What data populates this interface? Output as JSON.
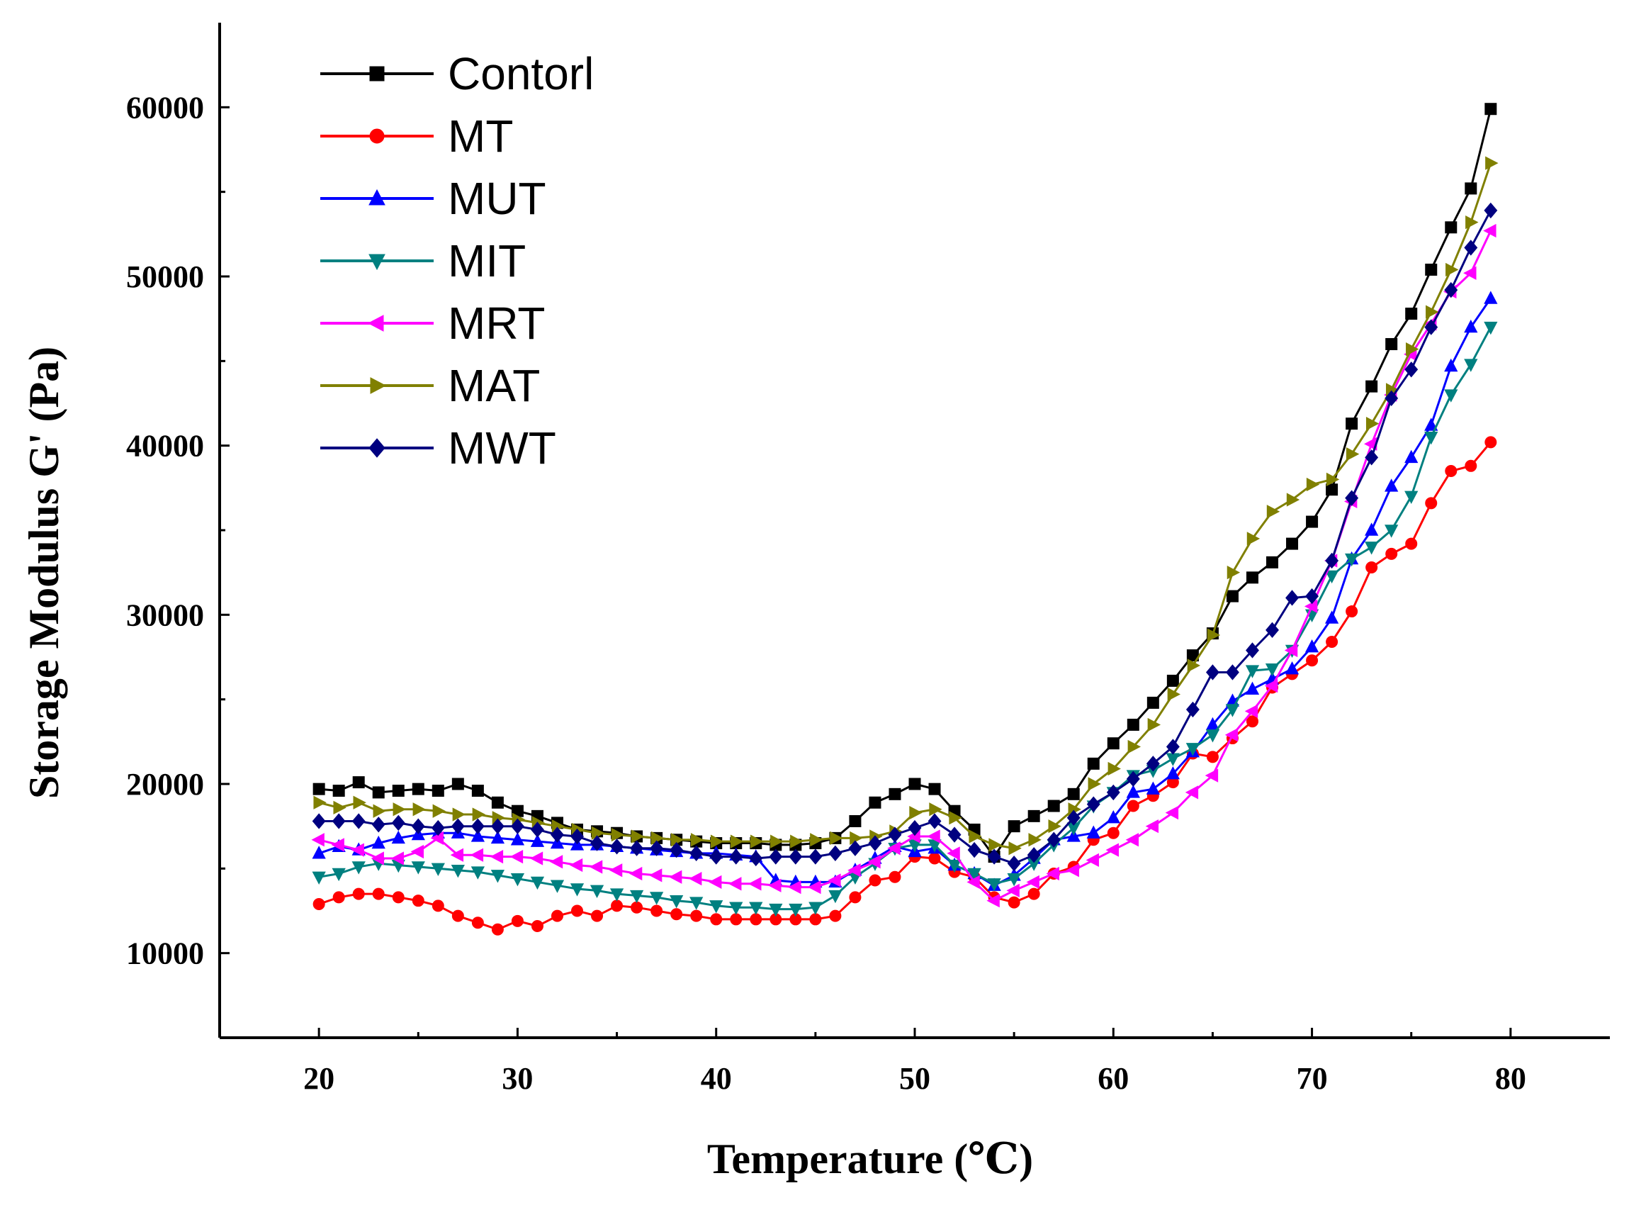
{
  "chart_data": {
    "type": "line",
    "title": "",
    "xlabel": "Temperature (℃)",
    "ylabel": "Storage Modulus G' (Pa)",
    "xlim": [
      15,
      85
    ],
    "ylim": [
      5000,
      65000
    ],
    "xticks": [
      20,
      30,
      40,
      50,
      60,
      70,
      80
    ],
    "yticks": [
      10000,
      20000,
      30000,
      40000,
      50000,
      60000
    ],
    "ytick_labels": [
      "10000",
      "20000",
      "30000",
      "40000",
      "50000",
      "60000"
    ],
    "legend_position": "top-left",
    "x": [
      20,
      21,
      22,
      23,
      24,
      25,
      26,
      27,
      28,
      29,
      30,
      31,
      32,
      33,
      34,
      35,
      36,
      37,
      38,
      39,
      40,
      41,
      42,
      43,
      44,
      45,
      46,
      47,
      48,
      49,
      50,
      51,
      52,
      53,
      54,
      55,
      56,
      57,
      58,
      59,
      60,
      61,
      62,
      63,
      64,
      65,
      66,
      67,
      68,
      69,
      70,
      71,
      72,
      73,
      74,
      75,
      76,
      77,
      78,
      79
    ],
    "series": [
      {
        "name": "Contorl",
        "color": "#000000",
        "marker": "square",
        "values": [
          19700,
          19600,
          20100,
          19500,
          19600,
          19700,
          19600,
          20000,
          19600,
          18900,
          18400,
          18100,
          17700,
          17300,
          17200,
          17100,
          16900,
          16800,
          16700,
          16600,
          16500,
          16500,
          16500,
          16400,
          16400,
          16500,
          16800,
          17800,
          18900,
          19400,
          20000,
          19700,
          18400,
          17300,
          15700,
          17500,
          18100,
          18700,
          19400,
          21200,
          22400,
          23500,
          24800,
          26100,
          27600,
          28900,
          31100,
          32200,
          33100,
          34200,
          35500,
          37400,
          41300,
          43500,
          46000,
          47800,
          50400,
          52900,
          55200,
          59900
        ]
      },
      {
        "name": "MT",
        "color": "#ff0000",
        "marker": "circle",
        "values": [
          12900,
          13300,
          13500,
          13500,
          13300,
          13100,
          12800,
          12200,
          11800,
          11400,
          11900,
          11600,
          12200,
          12500,
          12200,
          12800,
          12700,
          12500,
          12300,
          12200,
          12000,
          12000,
          12000,
          12000,
          12000,
          12000,
          12200,
          13300,
          14300,
          14500,
          15700,
          15600,
          14800,
          14500,
          13300,
          13000,
          13500,
          14700,
          15100,
          16700,
          17100,
          18700,
          19300,
          20100,
          21800,
          21600,
          22700,
          23700,
          25700,
          26500,
          27300,
          28400,
          30200,
          32800,
          33600,
          34200,
          36600,
          38500,
          38800,
          40200
        ]
      },
      {
        "name": "MUT",
        "color": "#0000ff",
        "marker": "triangle-up",
        "values": [
          15900,
          16300,
          16100,
          16500,
          16800,
          17000,
          17100,
          17100,
          16900,
          16800,
          16700,
          16600,
          16500,
          16400,
          16400,
          16300,
          16200,
          16100,
          16000,
          15900,
          15900,
          15800,
          15700,
          14300,
          14200,
          14200,
          14200,
          14900,
          15600,
          16300,
          16000,
          16200,
          15200,
          14700,
          14000,
          14600,
          15600,
          16700,
          16900,
          17100,
          18000,
          19500,
          19700,
          20600,
          21900,
          23500,
          24900,
          25600,
          26200,
          26800,
          28100,
          29800,
          33300,
          35000,
          37600,
          39300,
          41200,
          44700,
          47000,
          48700
        ]
      },
      {
        "name": "MIT",
        "color": "#008080",
        "marker": "triangle-down",
        "values": [
          14500,
          14700,
          15100,
          15300,
          15200,
          15100,
          15000,
          14900,
          14800,
          14600,
          14400,
          14200,
          14000,
          13800,
          13700,
          13500,
          13400,
          13300,
          13100,
          13000,
          12800,
          12700,
          12700,
          12600,
          12600,
          12700,
          13400,
          14500,
          15300,
          16200,
          16400,
          16400,
          15200,
          14700,
          14100,
          14400,
          15300,
          16400,
          17400,
          18700,
          19500,
          20500,
          20800,
          21500,
          22100,
          22900,
          24400,
          26700,
          26800,
          27900,
          30000,
          32300,
          33300,
          34000,
          35000,
          37000,
          40500,
          43000,
          44800,
          47000
        ]
      },
      {
        "name": "MRT",
        "color": "#ff00ff",
        "marker": "triangle-left",
        "values": [
          16700,
          16400,
          16100,
          15600,
          15600,
          16000,
          16800,
          15800,
          15800,
          15700,
          15700,
          15600,
          15400,
          15200,
          15100,
          14900,
          14700,
          14600,
          14500,
          14400,
          14200,
          14100,
          14100,
          14000,
          13900,
          13900,
          14300,
          14900,
          15400,
          16200,
          16900,
          16900,
          15900,
          14200,
          13100,
          13700,
          14200,
          14700,
          14900,
          15500,
          16100,
          16700,
          17500,
          18300,
          19500,
          20500,
          22900,
          24300,
          25800,
          27900,
          30500,
          33200,
          36700,
          40100,
          43000,
          45400,
          47200,
          49100,
          50200,
          52700
        ]
      },
      {
        "name": "MAT",
        "color": "#808000",
        "marker": "triangle-right",
        "values": [
          18900,
          18600,
          18900,
          18400,
          18500,
          18500,
          18400,
          18200,
          18200,
          18000,
          17900,
          17700,
          17500,
          17300,
          17100,
          17000,
          16900,
          16800,
          16700,
          16700,
          16600,
          16600,
          16600,
          16600,
          16600,
          16700,
          16800,
          16800,
          16900,
          17200,
          18300,
          18500,
          18000,
          16900,
          16400,
          16200,
          16700,
          17500,
          18500,
          20000,
          20900,
          22200,
          23500,
          25300,
          27000,
          28800,
          32500,
          34500,
          36100,
          36800,
          37700,
          38000,
          39500,
          41300,
          43300,
          45700,
          47900,
          50400,
          53200,
          56700
        ]
      },
      {
        "name": "MWT",
        "color": "#000080",
        "marker": "diamond",
        "values": [
          17800,
          17800,
          17800,
          17600,
          17700,
          17500,
          17400,
          17500,
          17500,
          17500,
          17500,
          17300,
          17000,
          16900,
          16500,
          16300,
          16200,
          16200,
          16100,
          15900,
          15700,
          15700,
          15600,
          15700,
          15700,
          15700,
          15900,
          16200,
          16500,
          17000,
          17400,
          17800,
          17000,
          16100,
          15700,
          15300,
          15800,
          16700,
          18000,
          18800,
          19500,
          20300,
          21200,
          22200,
          24400,
          26600,
          26600,
          27900,
          29100,
          31000,
          31100,
          33200,
          36900,
          39300,
          42800,
          44500,
          47000,
          49200,
          51700,
          53900
        ]
      }
    ]
  }
}
